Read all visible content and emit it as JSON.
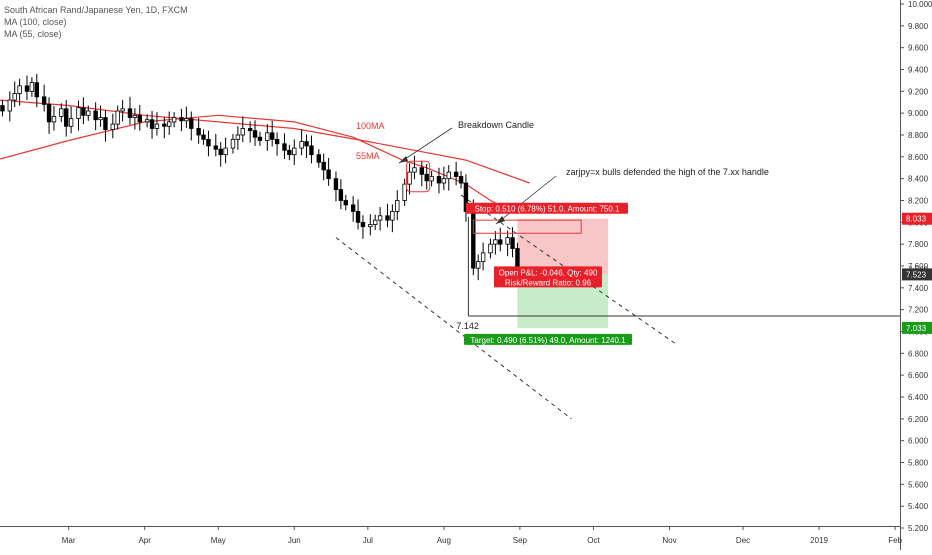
{
  "header": {
    "symbol_line": "South African Rand/Japanese Yen, 1D, FXCM",
    "ma100_line": "MA (100, close)",
    "ma55_line": "MA (55, close)"
  },
  "colors": {
    "up": "#ffffff",
    "down": "#000000",
    "candle_border": "#000000",
    "ma": "#e53935",
    "stop_zone": "#f8c6c6",
    "target_zone": "#c8ebc8",
    "stop_badge": "#e8202a",
    "target_badge": "#1a9c1a"
  },
  "annotations": {
    "breakdown": "Breakdown Candle",
    "ma100": "100MA",
    "ma55": "55MA",
    "zarjpy": "zarjpy=x bulls defended the high of the 7.xx handle",
    "low_value": "7.142",
    "stop_text": "Stop: 0.510 (6.78%) 51.0, Amount: 750.1",
    "target_text": "Target: 0.490 (6.51%) 49.0, Amount: 1240.1",
    "pnl_text": "Open P&L: -0.046, Qty: 490",
    "rr_text": "Risk/Reward Ratio: 0.96",
    "price_stop": "8.033",
    "price_entry": "7.523",
    "price_target": "7.033",
    "price_last": "7.569"
  },
  "chart_data": {
    "type": "candlestick",
    "title": "South African Rand/Japanese Yen, 1D, FXCM",
    "ylim": [
      5.2,
      10.0
    ],
    "y_ticks": [
      "10.000",
      "9.800",
      "9.600",
      "9.400",
      "9.200",
      "9.000",
      "8.800",
      "8.600",
      "8.400",
      "8.200",
      "8.000",
      "7.800",
      "7.600",
      "7.400",
      "7.200",
      "7.000",
      "6.800",
      "6.600",
      "6.400",
      "6.200",
      "6.000",
      "5.800",
      "5.600",
      "5.400",
      "5.200"
    ],
    "x_ticks": [
      {
        "label": "Mar",
        "date": "2018-03-01"
      },
      {
        "label": "Apr",
        "date": "2018-04-01"
      },
      {
        "label": "May",
        "date": "2018-05-01"
      },
      {
        "label": "Jun",
        "date": "2018-06-01"
      },
      {
        "label": "Jul",
        "date": "2018-07-01"
      },
      {
        "label": "Aug",
        "date": "2018-08-01"
      },
      {
        "label": "Sep",
        "date": "2018-09-01"
      },
      {
        "label": "Oct",
        "date": "2018-10-01"
      },
      {
        "label": "Nov",
        "date": "2018-11-01"
      },
      {
        "label": "Dec",
        "date": "2018-12-01"
      },
      {
        "label": "2019",
        "date": "2019-01-01"
      },
      {
        "label": "Feb",
        "date": "2019-02-01"
      }
    ],
    "x_range": [
      "2018-02-01",
      "2019-02-03"
    ],
    "closes": [
      {
        "date": "2018-02-02",
        "close": 9.02
      },
      {
        "date": "2018-02-05",
        "close": 9.12
      },
      {
        "date": "2018-02-07",
        "close": 9.18
      },
      {
        "date": "2018-02-09",
        "close": 9.25
      },
      {
        "date": "2018-02-12",
        "close": 9.2
      },
      {
        "date": "2018-02-14",
        "close": 9.28
      },
      {
        "date": "2018-02-16",
        "close": 9.15
      },
      {
        "date": "2018-02-19",
        "close": 9.08
      },
      {
        "date": "2018-02-21",
        "close": 8.92
      },
      {
        "date": "2018-02-23",
        "close": 8.97
      },
      {
        "date": "2018-02-26",
        "close": 9.04
      },
      {
        "date": "2018-02-28",
        "close": 8.88
      },
      {
        "date": "2018-03-02",
        "close": 8.95
      },
      {
        "date": "2018-03-05",
        "close": 9.05
      },
      {
        "date": "2018-03-07",
        "close": 8.98
      },
      {
        "date": "2018-03-09",
        "close": 9.02
      },
      {
        "date": "2018-03-12",
        "close": 8.94
      },
      {
        "date": "2018-03-14",
        "close": 8.96
      },
      {
        "date": "2018-03-16",
        "close": 8.85
      },
      {
        "date": "2018-03-19",
        "close": 8.9
      },
      {
        "date": "2018-03-21",
        "close": 9.02
      },
      {
        "date": "2018-03-23",
        "close": 9.04
      },
      {
        "date": "2018-03-26",
        "close": 8.96
      },
      {
        "date": "2018-03-28",
        "close": 8.98
      },
      {
        "date": "2018-03-30",
        "close": 8.92
      },
      {
        "date": "2018-04-02",
        "close": 8.94
      },
      {
        "date": "2018-04-04",
        "close": 8.86
      },
      {
        "date": "2018-04-06",
        "close": 8.9
      },
      {
        "date": "2018-04-09",
        "close": 8.88
      },
      {
        "date": "2018-04-11",
        "close": 8.92
      },
      {
        "date": "2018-04-13",
        "close": 8.96
      },
      {
        "date": "2018-04-16",
        "close": 8.93
      },
      {
        "date": "2018-04-18",
        "close": 8.95
      },
      {
        "date": "2018-04-20",
        "close": 8.86
      },
      {
        "date": "2018-04-23",
        "close": 8.8
      },
      {
        "date": "2018-04-25",
        "close": 8.76
      },
      {
        "date": "2018-04-27",
        "close": 8.7
      },
      {
        "date": "2018-04-30",
        "close": 8.67
      },
      {
        "date": "2018-05-02",
        "close": 8.62
      },
      {
        "date": "2018-05-04",
        "close": 8.68
      },
      {
        "date": "2018-05-07",
        "close": 8.76
      },
      {
        "date": "2018-05-09",
        "close": 8.8
      },
      {
        "date": "2018-05-11",
        "close": 8.86
      },
      {
        "date": "2018-05-14",
        "close": 8.84
      },
      {
        "date": "2018-05-16",
        "close": 8.78
      },
      {
        "date": "2018-05-18",
        "close": 8.75
      },
      {
        "date": "2018-05-21",
        "close": 8.82
      },
      {
        "date": "2018-05-23",
        "close": 8.76
      },
      {
        "date": "2018-05-25",
        "close": 8.72
      },
      {
        "date": "2018-05-28",
        "close": 8.66
      },
      {
        "date": "2018-05-30",
        "close": 8.62
      },
      {
        "date": "2018-06-01",
        "close": 8.68
      },
      {
        "date": "2018-06-04",
        "close": 8.74
      },
      {
        "date": "2018-06-06",
        "close": 8.7
      },
      {
        "date": "2018-06-08",
        "close": 8.62
      },
      {
        "date": "2018-06-11",
        "close": 8.55
      },
      {
        "date": "2018-06-13",
        "close": 8.48
      },
      {
        "date": "2018-06-15",
        "close": 8.4
      },
      {
        "date": "2018-06-18",
        "close": 8.3
      },
      {
        "date": "2018-06-20",
        "close": 8.2
      },
      {
        "date": "2018-06-22",
        "close": 8.16
      },
      {
        "date": "2018-06-25",
        "close": 8.1
      },
      {
        "date": "2018-06-27",
        "close": 8.0
      },
      {
        "date": "2018-06-29",
        "close": 7.96
      },
      {
        "date": "2018-07-02",
        "close": 7.98
      },
      {
        "date": "2018-07-04",
        "close": 8.02
      },
      {
        "date": "2018-07-06",
        "close": 8.06
      },
      {
        "date": "2018-07-09",
        "close": 8.02
      },
      {
        "date": "2018-07-11",
        "close": 8.1
      },
      {
        "date": "2018-07-13",
        "close": 8.2
      },
      {
        "date": "2018-07-16",
        "close": 8.35
      },
      {
        "date": "2018-07-18",
        "close": 8.46
      },
      {
        "date": "2018-07-20",
        "close": 8.5
      },
      {
        "date": "2018-07-23",
        "close": 8.44
      },
      {
        "date": "2018-07-25",
        "close": 8.38
      },
      {
        "date": "2018-07-27",
        "close": 8.42
      },
      {
        "date": "2018-07-30",
        "close": 8.36
      },
      {
        "date": "2018-08-01",
        "close": 8.4
      },
      {
        "date": "2018-08-03",
        "close": 8.46
      },
      {
        "date": "2018-08-06",
        "close": 8.42
      },
      {
        "date": "2018-08-08",
        "close": 8.36
      },
      {
        "date": "2018-08-10",
        "close": 8.1
      },
      {
        "date": "2018-08-13",
        "close": 7.58
      },
      {
        "date": "2018-08-15",
        "close": 7.64
      },
      {
        "date": "2018-08-17",
        "close": 7.72
      },
      {
        "date": "2018-08-20",
        "close": 7.8
      },
      {
        "date": "2018-08-22",
        "close": 7.84
      },
      {
        "date": "2018-08-24",
        "close": 7.8
      },
      {
        "date": "2018-08-27",
        "close": 7.86
      },
      {
        "date": "2018-08-29",
        "close": 7.76
      },
      {
        "date": "2018-08-31",
        "close": 7.55
      }
    ],
    "series": [
      {
        "name": "MA (100, close)",
        "points": [
          {
            "date": "2018-02-01",
            "value": 9.12
          },
          {
            "date": "2018-03-01",
            "value": 9.07
          },
          {
            "date": "2018-04-01",
            "value": 8.98
          },
          {
            "date": "2018-05-01",
            "value": 8.92
          },
          {
            "date": "2018-06-01",
            "value": 8.86
          },
          {
            "date": "2018-07-01",
            "value": 8.74
          },
          {
            "date": "2018-07-20",
            "value": 8.66
          },
          {
            "date": "2018-08-10",
            "value": 8.57
          },
          {
            "date": "2018-09-05",
            "value": 8.36
          }
        ]
      },
      {
        "name": "MA (55, close)",
        "points": [
          {
            "date": "2018-02-01",
            "value": 8.58
          },
          {
            "date": "2018-03-01",
            "value": 8.75
          },
          {
            "date": "2018-04-01",
            "value": 8.92
          },
          {
            "date": "2018-05-01",
            "value": 8.98
          },
          {
            "date": "2018-06-01",
            "value": 8.92
          },
          {
            "date": "2018-06-25",
            "value": 8.78
          },
          {
            "date": "2018-07-15",
            "value": 8.57
          },
          {
            "date": "2018-07-25",
            "value": 8.5
          },
          {
            "date": "2018-08-10",
            "value": 8.35
          },
          {
            "date": "2018-08-20",
            "value": 8.2
          },
          {
            "date": "2018-08-31",
            "value": 8.08
          }
        ]
      }
    ],
    "trendlines": [
      {
        "from": {
          "date": "2018-06-18",
          "value": 7.86
        },
        "to": {
          "date": "2018-09-22",
          "value": 6.2
        }
      },
      {
        "from": {
          "date": "2018-08-08",
          "value": 8.25
        },
        "to": {
          "date": "2018-11-04",
          "value": 6.88
        }
      }
    ],
    "position": {
      "start": "2018-08-31",
      "end": "2018-10-07",
      "entry": 7.523,
      "stop": 8.033,
      "target": 7.033
    },
    "horizontal_line": 7.142,
    "last_price": 7.569
  }
}
